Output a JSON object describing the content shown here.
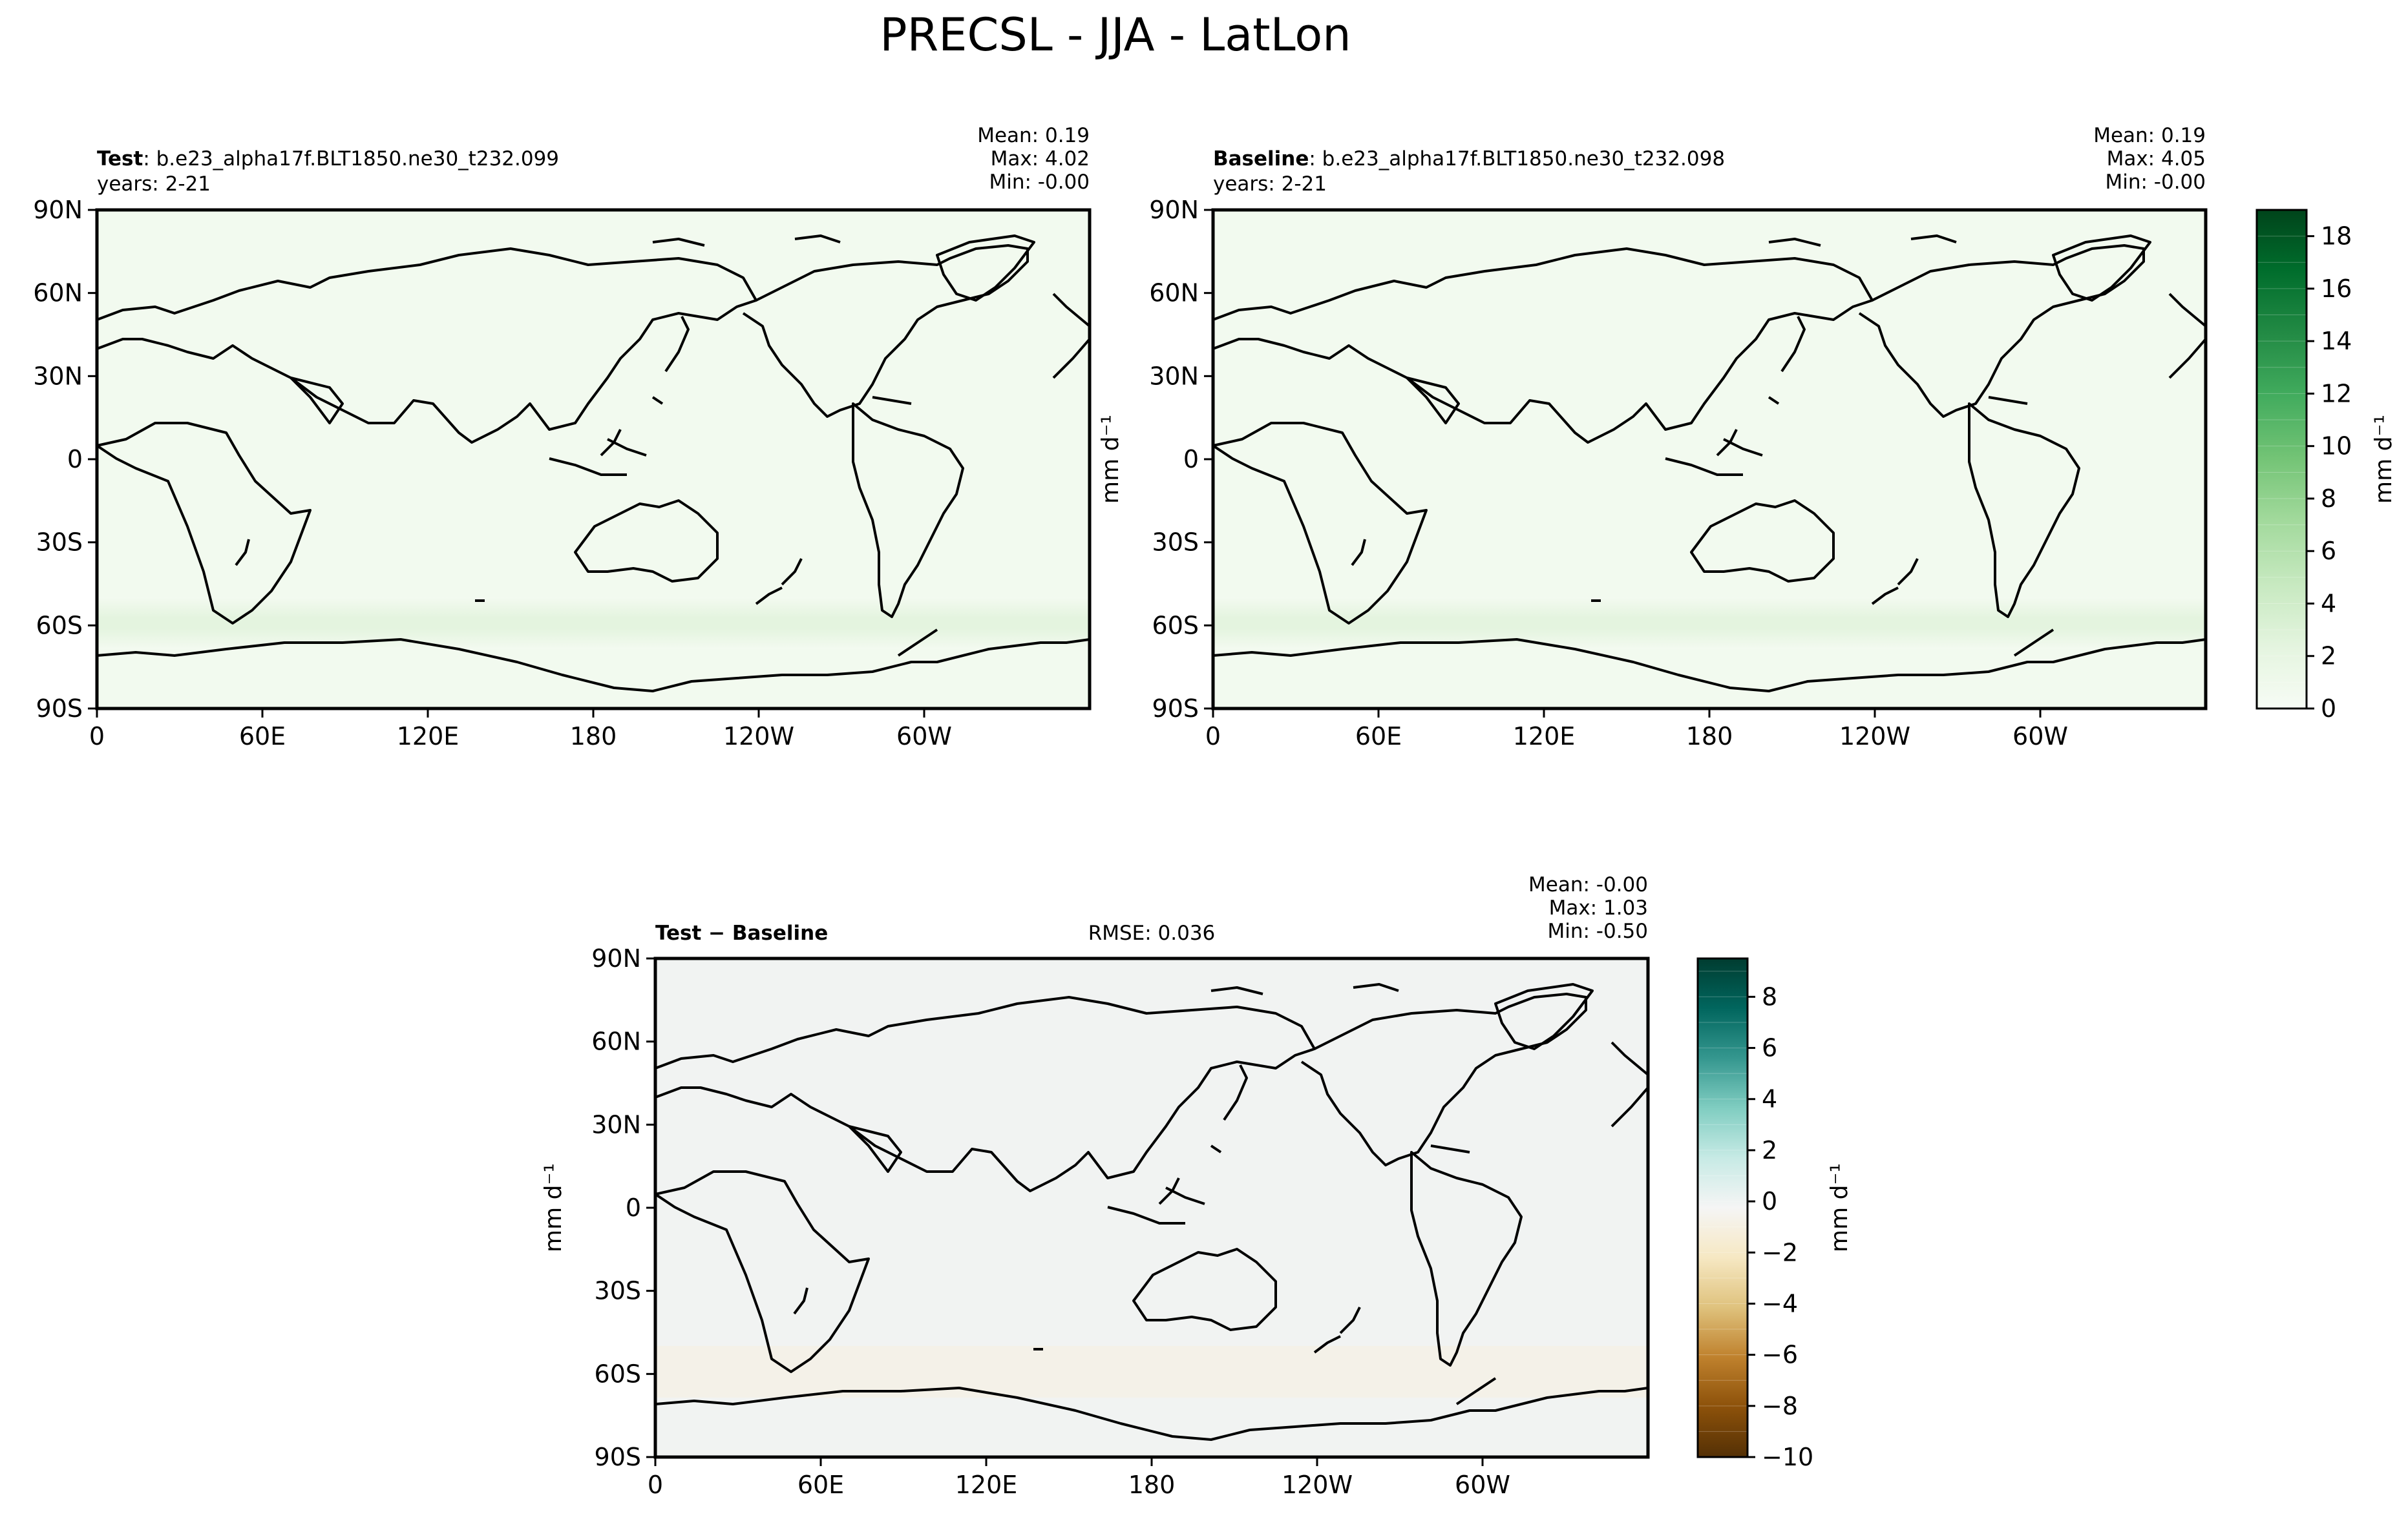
{
  "figure": {
    "title": "PRECSL - JJA - LatLon"
  },
  "chart_data": [
    {
      "type": "heatmap",
      "panel": "test",
      "title_bold": "Test",
      "title_rest": ": b.e23_alpha17f.BLT1850.ne30_t232.099",
      "subtitle": "years: 2-21",
      "stats": {
        "mean": "Mean:  0.19",
        "max": "Max:  4.02",
        "min": "Min: -0.00"
      },
      "xticks": [
        "0",
        "60E",
        "120E",
        "180",
        "120W",
        "60W"
      ],
      "yticks": [
        "90N",
        "60N",
        "30N",
        "0",
        "30S",
        "60S",
        "90S"
      ],
      "xlim": [
        0,
        360
      ],
      "ylim": [
        -90,
        90
      ],
      "values_range": [
        -0.0,
        4.02
      ]
    },
    {
      "type": "heatmap",
      "panel": "baseline",
      "title_bold": "Baseline",
      "title_rest": ": b.e23_alpha17f.BLT1850.ne30_t232.098",
      "subtitle": "years: 2-21",
      "stats": {
        "mean": "Mean:  0.19",
        "max": "Max:  4.05",
        "min": "Min: -0.00"
      },
      "xticks": [
        "0",
        "60E",
        "120E",
        "180",
        "120W",
        "60W"
      ],
      "yticks": [
        "90N",
        "60N",
        "30N",
        "0",
        "30S",
        "60S",
        "90S"
      ],
      "xlim": [
        0,
        360
      ],
      "ylim": [
        -90,
        90
      ],
      "values_range": [
        -0.0,
        4.05
      ],
      "colorbar": {
        "label": "mm d⁻¹",
        "ticks": [
          "0",
          "2",
          "4",
          "6",
          "8",
          "10",
          "12",
          "14",
          "16",
          "18"
        ],
        "range": [
          0,
          19
        ],
        "colors": [
          "#f7fcf5",
          "#e5f5e0",
          "#c7e9c0",
          "#a1d99b",
          "#74c476",
          "#41ab5d",
          "#238b45",
          "#006d2c",
          "#00441b"
        ]
      }
    },
    {
      "type": "heatmap",
      "panel": "difference",
      "title_bold": "Test − Baseline",
      "rmse": "RMSE: 0.036",
      "ylabel": "mm d⁻¹",
      "stats": {
        "mean": "Mean: -0.00",
        "max": "Max:  1.03",
        "min": "Min: -0.50"
      },
      "xticks": [
        "0",
        "60E",
        "120E",
        "180",
        "120W",
        "60W"
      ],
      "yticks": [
        "90N",
        "60N",
        "30N",
        "0",
        "30S",
        "60S",
        "90S"
      ],
      "xlim": [
        0,
        360
      ],
      "ylim": [
        -90,
        90
      ],
      "values_range": [
        -0.5,
        1.03
      ],
      "colorbar": {
        "label": "mm d⁻¹",
        "ticks": [
          "8",
          "6",
          "4",
          "2",
          "0",
          "−2",
          "−4",
          "−6",
          "−8",
          "−10"
        ],
        "range": [
          -10,
          9.5
        ],
        "colors": [
          "#003c30",
          "#01665e",
          "#35978f",
          "#80cdc1",
          "#c7eae5",
          "#f5f5f5",
          "#f6e8c3",
          "#dfc27d",
          "#bf812d",
          "#8c510a",
          "#543005"
        ]
      }
    }
  ],
  "shared": {
    "panel_ylabel": "mm d⁻¹"
  }
}
